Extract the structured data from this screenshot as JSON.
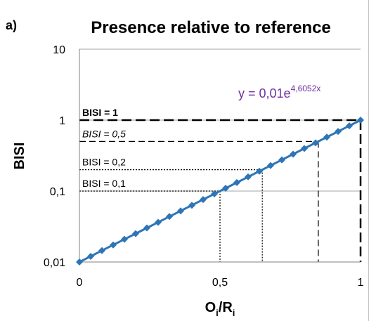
{
  "panel_label": "a)",
  "title": "Presence relative to reference",
  "equation": {
    "prefix": "y = 0,01e",
    "exponent": "4,6052x",
    "color": "#7030a0"
  },
  "colors": {
    "series": "#2e75b6",
    "grid": "#a6a6a6",
    "axis": "#808080",
    "guide": "#000000"
  },
  "annotations": [
    {
      "text": "BISI = 1",
      "style": "bold"
    },
    {
      "text": "BISI = 0,5",
      "style": "italic"
    },
    {
      "text": "BISI = 0,2",
      "style": "normal"
    },
    {
      "text": "BISI = 0,1",
      "style": "normal"
    }
  ],
  "chart_data": {
    "type": "line",
    "title": "Presence relative to reference",
    "xlabel": "Oi/Ri",
    "xlabel_main": "O",
    "xlabel_sub": "i",
    "xlabel_sep": "/R",
    "xlabel_sub2": "i",
    "ylabel": "BISI",
    "xlim": [
      0,
      1
    ],
    "ylim": [
      0.01,
      10
    ],
    "y_scale": "log",
    "x_ticks": [
      {
        "value": 0,
        "label": "0"
      },
      {
        "value": 0.5,
        "label": "0,5"
      },
      {
        "value": 1,
        "label": "1"
      }
    ],
    "y_ticks": [
      {
        "value": 0.01,
        "label": "0,01"
      },
      {
        "value": 0.1,
        "label": "0,1"
      },
      {
        "value": 1,
        "label": "1"
      },
      {
        "value": 10,
        "label": "10"
      }
    ],
    "grid": "horizontal major",
    "series": [
      {
        "marker": "diamond",
        "x": [
          0,
          0.04,
          0.08,
          0.12,
          0.16,
          0.2,
          0.24,
          0.28,
          0.32,
          0.36,
          0.4,
          0.44,
          0.48,
          0.52,
          0.56,
          0.6,
          0.64,
          0.68,
          0.72,
          0.76,
          0.8,
          0.84,
          0.88,
          0.92,
          0.96,
          1.0
        ],
        "y": [
          0.01,
          0.012,
          0.0145,
          0.0174,
          0.0209,
          0.0251,
          0.0302,
          0.0363,
          0.0437,
          0.0525,
          0.0631,
          0.0759,
          0.0912,
          0.1096,
          0.1318,
          0.1585,
          0.1905,
          0.2291,
          0.2754,
          0.3311,
          0.3981,
          0.4786,
          0.5754,
          0.6918,
          0.8318,
          1.0
        ]
      }
    ],
    "guides": [
      {
        "bisi": 1,
        "x": 1.0,
        "style": "long-dash"
      },
      {
        "bisi": 0.5,
        "x": 0.8495,
        "style": "dash"
      },
      {
        "bisi": 0.2,
        "x": 0.6505,
        "style": "dot"
      },
      {
        "bisi": 0.1,
        "x": 0.5,
        "style": "dot"
      }
    ]
  }
}
